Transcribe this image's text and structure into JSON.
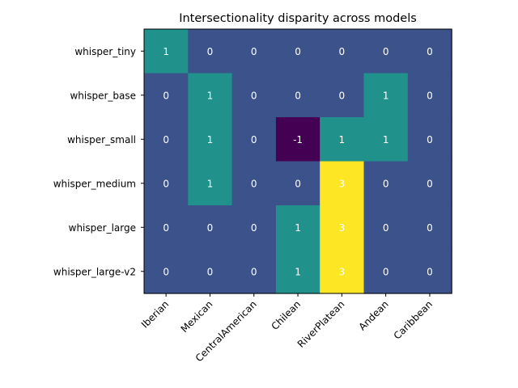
{
  "chart_data": {
    "type": "heatmap",
    "title": "Intersectionality disparity across models",
    "rows": [
      "whisper_tiny",
      "whisper_base",
      "whisper_small",
      "whisper_medium",
      "whisper_large",
      "whisper_large-v2"
    ],
    "columns": [
      "Iberian",
      "Mexican",
      "CentralAmerican",
      "Chilean",
      "RiverPlatean",
      "Andean",
      "Caribbean"
    ],
    "values": [
      [
        1,
        0,
        0,
        0,
        0,
        0,
        0
      ],
      [
        0,
        1,
        0,
        0,
        0,
        1,
        0
      ],
      [
        0,
        1,
        0,
        -1,
        1,
        1,
        0
      ],
      [
        0,
        1,
        0,
        0,
        3,
        0,
        0
      ],
      [
        0,
        0,
        0,
        1,
        3,
        0,
        0
      ],
      [
        0,
        0,
        0,
        1,
        3,
        0,
        0
      ]
    ],
    "colormap": "viridis",
    "value_range": [
      -1,
      3
    ],
    "colors": {
      "-1": "#440154",
      "0": "#3b528b",
      "1": "#21918c",
      "3": "#fde725"
    }
  }
}
